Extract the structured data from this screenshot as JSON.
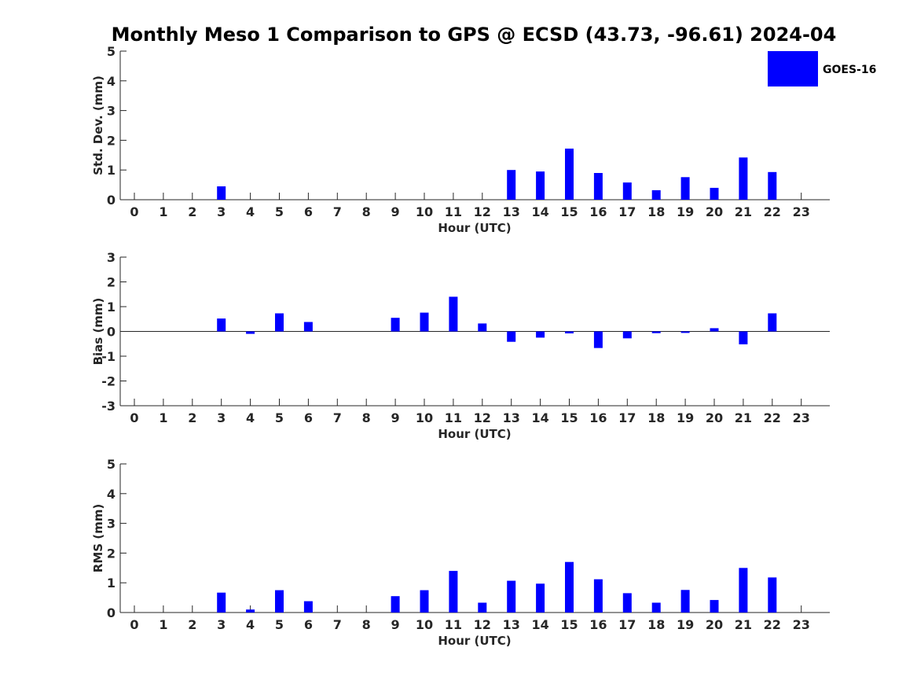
{
  "title": "Monthly Meso 1 Comparison to GPS @ ECSD (43.73, -96.61) 2024-04",
  "legend": {
    "label": "GOES-16",
    "color": "#0000ff"
  },
  "chart_data": [
    {
      "type": "bar",
      "xlabel": "Hour (UTC)",
      "ylabel": "Std. Dev. (mm)",
      "ylim": [
        0,
        5
      ],
      "yticks": [
        "0",
        "1",
        "2",
        "3",
        "4",
        "5"
      ],
      "categories": [
        "0",
        "1",
        "2",
        "3",
        "4",
        "5",
        "6",
        "7",
        "8",
        "9",
        "10",
        "11",
        "12",
        "13",
        "14",
        "15",
        "16",
        "17",
        "18",
        "19",
        "20",
        "21",
        "22",
        "23"
      ],
      "series": [
        {
          "name": "GOES-16",
          "color": "#0000ff",
          "values": [
            null,
            null,
            null,
            0.45,
            null,
            null,
            null,
            null,
            null,
            null,
            null,
            null,
            null,
            1.0,
            0.95,
            1.72,
            0.9,
            0.58,
            0.32,
            0.76,
            0.4,
            1.42,
            0.93,
            null
          ]
        }
      ],
      "grid": false,
      "legend_position": "top-right"
    },
    {
      "type": "bar",
      "xlabel": "Hour (UTC)",
      "ylabel": "Bias (mm)",
      "ylim": [
        -3,
        3
      ],
      "yticks": [
        "-3",
        "-2",
        "-1",
        "0",
        "1",
        "2",
        "3"
      ],
      "categories": [
        "0",
        "1",
        "2",
        "3",
        "4",
        "5",
        "6",
        "7",
        "8",
        "9",
        "10",
        "11",
        "12",
        "13",
        "14",
        "15",
        "16",
        "17",
        "18",
        "19",
        "20",
        "21",
        "22",
        "23"
      ],
      "series": [
        {
          "name": "GOES-16",
          "color": "#0000ff",
          "values": [
            null,
            null,
            null,
            0.52,
            -0.1,
            0.73,
            0.38,
            null,
            null,
            0.55,
            0.76,
            1.4,
            0.32,
            -0.42,
            -0.25,
            -0.08,
            -0.67,
            -0.28,
            -0.07,
            -0.06,
            0.13,
            -0.52,
            0.73,
            null
          ]
        }
      ],
      "grid": false
    },
    {
      "type": "bar",
      "xlabel": "Hour (UTC)",
      "ylabel": "RMS (mm)",
      "ylim": [
        0,
        5
      ],
      "yticks": [
        "0",
        "1",
        "2",
        "3",
        "4",
        "5"
      ],
      "categories": [
        "0",
        "1",
        "2",
        "3",
        "4",
        "5",
        "6",
        "7",
        "8",
        "9",
        "10",
        "11",
        "12",
        "13",
        "14",
        "15",
        "16",
        "17",
        "18",
        "19",
        "20",
        "21",
        "22",
        "23"
      ],
      "series": [
        {
          "name": "GOES-16",
          "color": "#0000ff",
          "values": [
            null,
            null,
            null,
            0.67,
            0.1,
            0.75,
            0.38,
            null,
            null,
            0.55,
            0.75,
            1.4,
            0.33,
            1.07,
            0.97,
            1.7,
            1.12,
            0.65,
            0.33,
            0.76,
            0.42,
            1.5,
            1.18,
            null
          ]
        }
      ],
      "grid": false
    }
  ]
}
